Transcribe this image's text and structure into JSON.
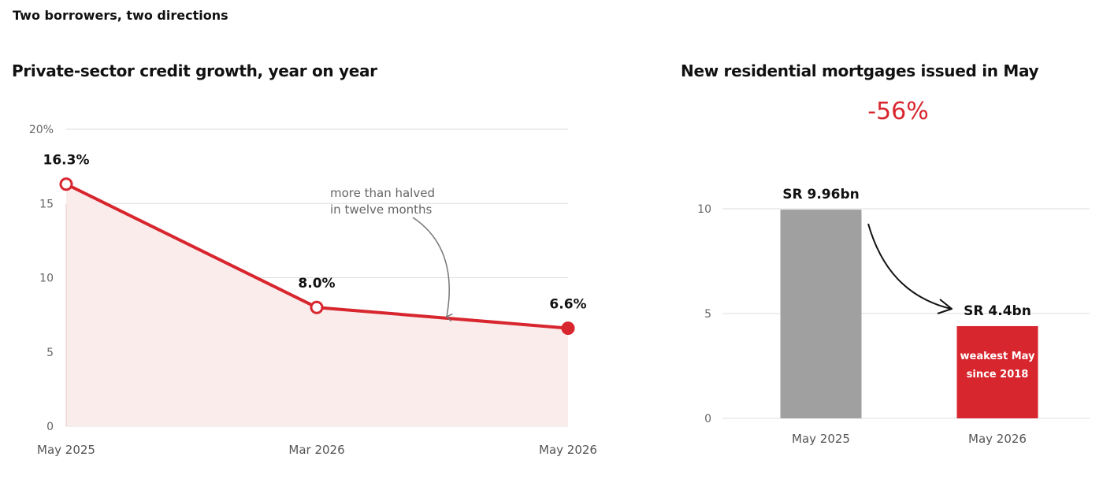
{
  "page": {
    "title": "Two borrowers, two directions"
  },
  "colors": {
    "accent": "#d7262e",
    "area_fill": "#fbecec",
    "bar_grey": "#a0a0a0",
    "grid": "#dddddd"
  },
  "chart_data": [
    {
      "type": "line",
      "title": "Private-sector credit growth, year on year",
      "categories": [
        "May 2025",
        "Mar 2026",
        "May 2026"
      ],
      "series": [
        {
          "values": [
            16.3,
            8.0,
            6.6
          ],
          "labels": [
            "16.3%",
            "8.0%",
            "6.6%"
          ]
        }
      ],
      "yticks": [
        "0",
        "5",
        "10",
        "15",
        "20%"
      ],
      "ylim": [
        0,
        20
      ],
      "grid": true,
      "area_fill": true,
      "annotation": {
        "lines": [
          "more than halved",
          "in twelve months"
        ]
      }
    },
    {
      "type": "bar",
      "title": "New residential mortgages issued in May",
      "headline": "-56%",
      "categories": [
        "May 2025",
        "May 2026"
      ],
      "values": [
        9.96,
        4.4
      ],
      "value_labels": [
        "SR 9.96bn",
        "SR 4.4bn"
      ],
      "bar_inner_label": [
        "weakest May",
        "since 2018"
      ],
      "yticks": [
        "0",
        "5",
        "10"
      ],
      "ylim": [
        0,
        10
      ],
      "grid": true
    }
  ]
}
